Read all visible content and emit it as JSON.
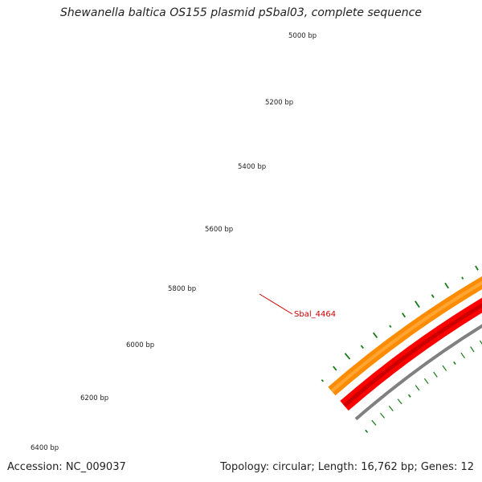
{
  "title": "Shewanella baltica OS155 plasmid pSbal03, complete sequence",
  "footer": {
    "accession": "Accession: NC_009037",
    "summary": "Topology: circular; Length: 16,762 bp; Genes: 12"
  },
  "map": {
    "tick_labels": [
      "5000 bp",
      "5200 bp",
      "5400 bp",
      "5600 bp",
      "5800 bp",
      "6000 bp",
      "6200 bp",
      "6400 bp"
    ],
    "gene_label": "Sbal_4464",
    "colors": {
      "backbone": "#808080",
      "forward_feature": "#ff0000",
      "forward_feature_highlight": "#cc0000",
      "reverse_feature": "#ff8c00",
      "reverse_feature_highlight": "#ffa533",
      "gc_marks": "#1a7a1a",
      "gene_label": "#cc0000"
    }
  }
}
